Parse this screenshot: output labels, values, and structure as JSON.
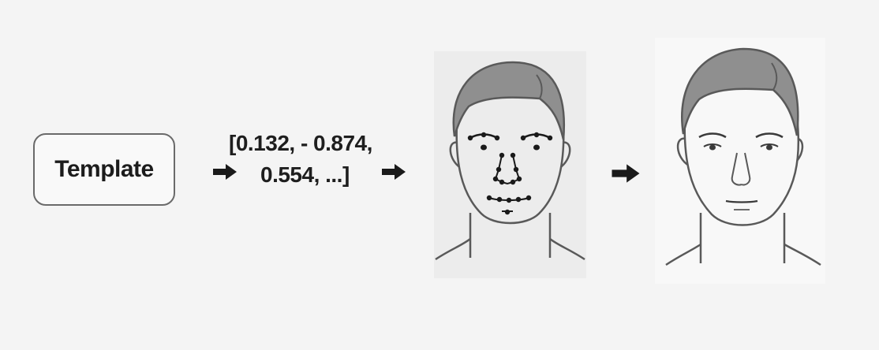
{
  "pipeline": {
    "template_label": "Template",
    "vector_line1": "[0.132, - 0.874,",
    "vector_line2": "0.554, ...]"
  },
  "colors": {
    "stroke": "#595959",
    "hair": "#8f8f8f",
    "arrow": "#1a1a1a",
    "landmark": "#1a1a1a"
  }
}
